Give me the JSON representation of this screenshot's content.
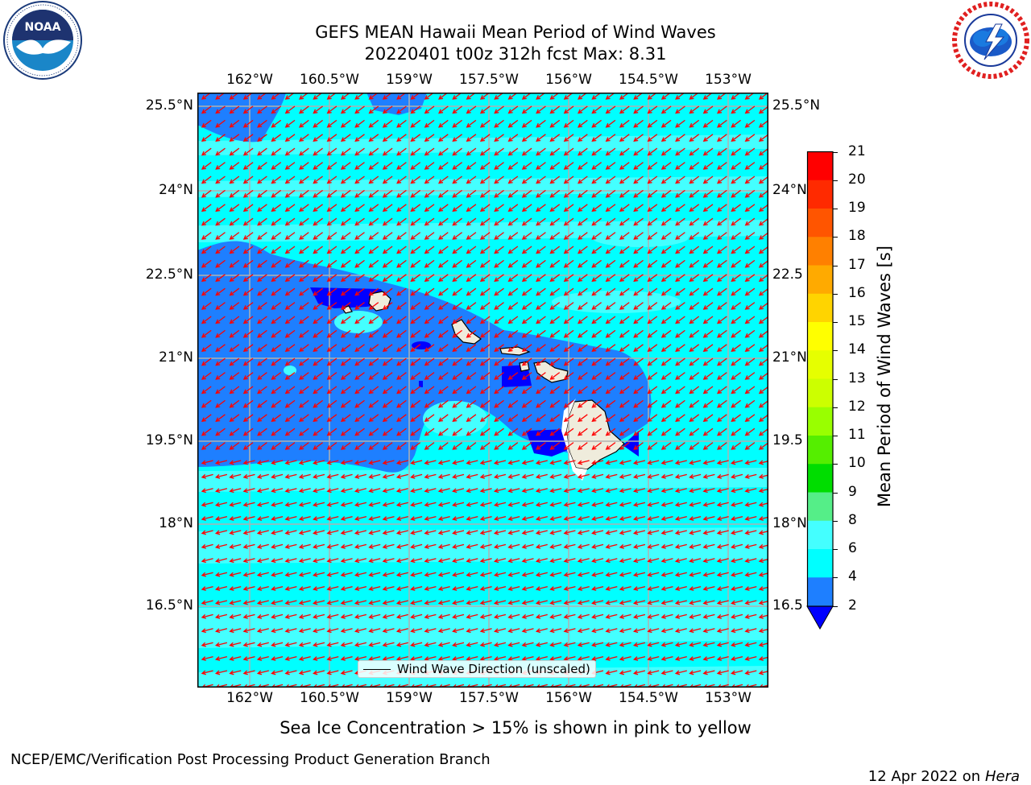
{
  "title": {
    "line1": "GEFS MEAN Hawaii Mean Period of Wind Waves",
    "line2": "20220401 t00z 312h fcst   Max: 8.31"
  },
  "logos": {
    "left": {
      "icon": "noaa-logo-icon",
      "text": "NOAA",
      "ring_text": "NATIONAL OCEANIC AND ATMOSPHERIC ADMINISTRATION · U.S. DEPARTMENT OF COMMERCE"
    },
    "right": {
      "icon": "nws-logo-icon",
      "ring_text": "NATIONAL WEATHER SERVICE"
    }
  },
  "map": {
    "lon_ticks": [
      "162°W",
      "160.5°W",
      "159°W",
      "157.5°W",
      "156°W",
      "154.5°W",
      "153°W"
    ],
    "lat_ticks": [
      "25.5°N",
      "24°N",
      "22.5°N",
      "21°N",
      "19.5°N",
      "18°N",
      "16.5°N"
    ],
    "lat_ticks_right": [
      "25.5°N",
      "24°N",
      "22.5",
      "21°N",
      "19.5",
      "18°N",
      "16.5"
    ],
    "lon_range": [
      -163,
      -152.7
    ],
    "lat_range": [
      15.1,
      25.8
    ],
    "grid": true,
    "vectors_color": "#ff0000",
    "coastline_color": "#000000",
    "land_color": "#efecdc",
    "legend_label": "Wind Wave Direction (unscaled)"
  },
  "colorbar": {
    "label": "Mean Period of Wind Waves [s]",
    "ticks": [
      "21",
      "20",
      "19",
      "18",
      "17",
      "16",
      "15",
      "14",
      "13",
      "12",
      "11",
      "10",
      "9",
      "8",
      "6",
      "4",
      "2"
    ],
    "colors": [
      "#ff0000",
      "#ff2a00",
      "#ff5500",
      "#ff8000",
      "#ffaa00",
      "#ffd400",
      "#ffff00",
      "#e6ff00",
      "#ccff00",
      "#99ff00",
      "#55ee00",
      "#00dd00",
      "#55ee88",
      "#99ffee",
      "#44ffff",
      "#00ffff",
      "#1e7fff"
    ],
    "under_color": "#0000ff"
  },
  "note": "Sea Ice Concentration > 15% is shown in pink to yellow",
  "footer": {
    "left": "NCEP/EMC/Verification Post Processing Product Generation Branch",
    "date": "12 Apr 2022 on ",
    "host": "Hera"
  }
}
